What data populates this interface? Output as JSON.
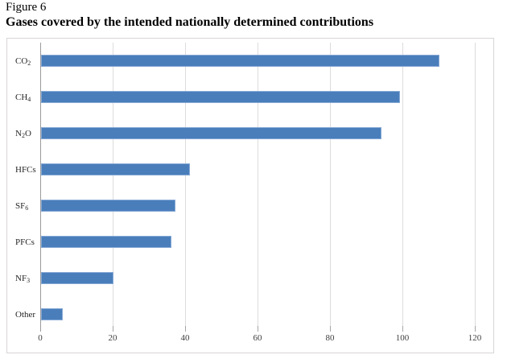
{
  "figure": {
    "label": "Figure 6",
    "title": "Gases covered by the intended nationally determined contributions"
  },
  "chart_data": {
    "type": "bar",
    "orientation": "horizontal",
    "title": "Gases covered by the intended nationally determined contributions",
    "xlabel": "",
    "ylabel": "",
    "xlim": [
      0,
      120
    ],
    "x_ticks": [
      0,
      20,
      40,
      60,
      80,
      100,
      120
    ],
    "grid": "vertical-gridlines-on",
    "legend": "none",
    "categories": [
      {
        "label": "CO2",
        "base": "CO",
        "sub": "2",
        "suffix": ""
      },
      {
        "label": "CH4",
        "base": "CH",
        "sub": "4",
        "suffix": ""
      },
      {
        "label": "N2O",
        "base": "N",
        "sub": "2",
        "suffix": "O"
      },
      {
        "label": "HFCs",
        "base": "HFCs",
        "sub": "",
        "suffix": ""
      },
      {
        "label": "SF6",
        "base": "SF",
        "sub": "6",
        "suffix": ""
      },
      {
        "label": "PFCs",
        "base": "PFCs",
        "sub": "",
        "suffix": ""
      },
      {
        "label": "NF3",
        "base": "NF",
        "sub": "3",
        "suffix": ""
      },
      {
        "label": "Other",
        "base": "Other",
        "sub": "",
        "suffix": ""
      }
    ],
    "values": [
      110,
      99,
      94,
      41,
      37,
      36,
      20,
      6
    ],
    "colors": {
      "bar_fill": "#4a7ebb",
      "bar_border": "#87a9d5",
      "gridline": "#dcdcdc",
      "axis_line": "#9b9b9b",
      "tick_mark": "#a6a6a6",
      "tick_text": "#404040",
      "chart_border": "#d8d5d5"
    }
  }
}
